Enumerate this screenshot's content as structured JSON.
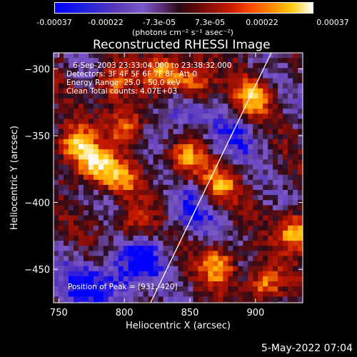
{
  "colorbar": {
    "ticks": [
      "-0.00037",
      "-0.00022",
      "-7.3e-05",
      "7.3e-05",
      "0.00022",
      "0.00037"
    ],
    "unit": "(photons cm⁻² s⁻¹ asec⁻²)"
  },
  "annotations": {
    "time_range": "6-Sep-2003 23:33:04.000 to 23:38:32.000",
    "detectors": "Detectors: 3F 4F 5F 6F 7F 8F, Att 0",
    "energy": "Energy Range: 25.0 - 50.0 keV",
    "clean": "Clean     Total counts: 4.07E+03",
    "peak": "Position of Peak = [931,-420]"
  },
  "footer": {
    "date": "5-May-2022 07:04"
  },
  "chart_data": {
    "type": "heatmap",
    "title": "Reconstructed RHESSI Image",
    "xlabel": "Heliocentric X (arcsec)",
    "ylabel": "Heliocentric Y (arcsec)",
    "xlim": [
      746,
      936
    ],
    "ylim": [
      -475,
      -288
    ],
    "xticks": [
      750,
      800,
      850,
      900
    ],
    "yticks": [
      -300,
      -350,
      -400,
      -450
    ],
    "colorbar_range": [
      -0.00037,
      0.00037
    ],
    "colormap": [
      "#0000ff",
      "#5a38b8",
      "#7a58c8",
      "#2a0a18",
      "#8a0e08",
      "#c81a00",
      "#ff8800",
      "#ffcc10",
      "#ffffff"
    ],
    "limb_line": {
      "x": [
        820,
        912
      ],
      "y": [
        -475,
        -288
      ]
    },
    "hot_spots": [
      {
        "x": 760,
        "y": -355,
        "level": 0.9
      },
      {
        "x": 775,
        "y": -370,
        "level": 1.0
      },
      {
        "x": 800,
        "y": -340,
        "level": 0.8
      },
      {
        "x": 790,
        "y": -310,
        "level": 0.7
      },
      {
        "x": 830,
        "y": -300,
        "level": 0.85
      },
      {
        "x": 852,
        "y": -310,
        "level": 0.85
      },
      {
        "x": 845,
        "y": -365,
        "level": 0.8
      },
      {
        "x": 870,
        "y": -385,
        "level": 0.75
      },
      {
        "x": 895,
        "y": -320,
        "level": 0.8
      },
      {
        "x": 930,
        "y": -420,
        "level": 1.0
      },
      {
        "x": 870,
        "y": -445,
        "level": 0.85
      },
      {
        "x": 905,
        "y": -460,
        "level": 0.8
      },
      {
        "x": 795,
        "y": -380,
        "level": 0.65
      },
      {
        "x": 805,
        "y": -415,
        "level": 0.55
      }
    ],
    "cold_regions": [
      {
        "x": 810,
        "y": -440,
        "level": 1.0
      },
      {
        "x": 840,
        "y": -330,
        "level": 0.9
      },
      {
        "x": 765,
        "y": -460,
        "level": 0.85
      },
      {
        "x": 850,
        "y": -405,
        "level": 0.8
      },
      {
        "x": 880,
        "y": -350,
        "level": 0.7
      },
      {
        "x": 790,
        "y": -460,
        "level": 0.9
      }
    ]
  }
}
